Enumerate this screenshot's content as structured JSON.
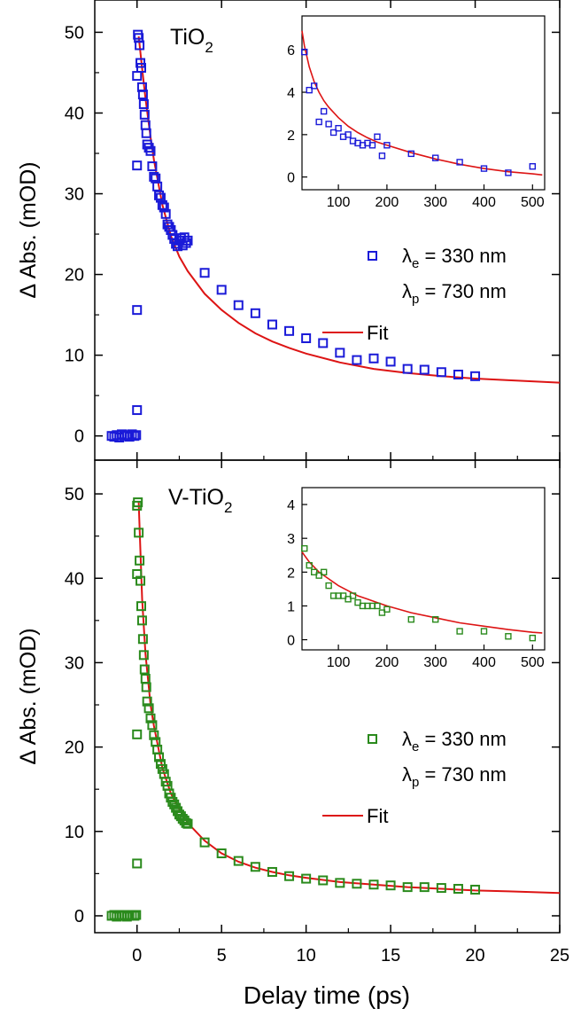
{
  "chart_data": [
    {
      "type": "scatter",
      "title": "TiO2",
      "title_main": "TiO",
      "title_sub": "2",
      "xlabel": "Delay time (ps)",
      "ylabel": "Δ Abs. (mOD)",
      "xlim": [
        -2.5,
        25
      ],
      "ylim": [
        -3,
        54
      ],
      "xticks": [
        "0",
        "5",
        "10",
        "15",
        "20",
        "25"
      ],
      "yticks": [
        "0",
        "10",
        "20",
        "30",
        "40",
        "50"
      ],
      "grid": false,
      "legend_position": "right",
      "legend": {
        "scatter_line": {
          "sym": "λ",
          "sub": "e",
          "text": " = 330 nm"
        },
        "probe_line": {
          "sym": "λ",
          "sub": "p",
          "text": " = 730 nm"
        },
        "fit_label": "Fit"
      },
      "colors": {
        "points": "#1a1ad8",
        "fit": "#dd1414"
      },
      "series": [
        {
          "kind": "markers",
          "x": [
            -1.5,
            -1.35,
            -1.2,
            -1.05,
            -0.9,
            -0.75,
            -0.6,
            -0.45,
            -0.3,
            -0.15,
            -0.05,
            0,
            0,
            0,
            0,
            0.05,
            0.1,
            0.15,
            0.2,
            0.25,
            0.3,
            0.35,
            0.4,
            0.45,
            0.5,
            0.55,
            0.6,
            0.7,
            0.8,
            0.9,
            1.0,
            1.1,
            1.2,
            1.3,
            1.4,
            1.5,
            1.6,
            1.7,
            1.8,
            1.9,
            2.0,
            2.1,
            2.2,
            2.3,
            2.4,
            2.5,
            2.6,
            2.7,
            2.8,
            2.9,
            3.0,
            4,
            5,
            6,
            7,
            8,
            9,
            10,
            11,
            12,
            13,
            14,
            15,
            16,
            17,
            18,
            19,
            20
          ],
          "y": [
            0,
            -0.1,
            0.1,
            -0.2,
            0.2,
            0,
            0.1,
            -0.1,
            0.2,
            0,
            0.1,
            3.2,
            15.6,
            33.5,
            44.6,
            49.7,
            49.3,
            48.4,
            46.2,
            45.6,
            43.2,
            42.3,
            41.1,
            39.8,
            38.5,
            37.5,
            36.1,
            35.7,
            35.3,
            33.4,
            32.1,
            31.9,
            30.9,
            29.8,
            29.5,
            28.6,
            28.3,
            27.5,
            26.2,
            25.9,
            25.5,
            24.9,
            24.4,
            23.8,
            23.5,
            24.2,
            24.5,
            23.6,
            24.6,
            23.9,
            24.2,
            20.2,
            18.1,
            16.2,
            15.2,
            13.8,
            13.0,
            12.1,
            11.5,
            10.3,
            9.4,
            9.6,
            9.2,
            8.3,
            8.2,
            7.9,
            7.6,
            7.4
          ]
        },
        {
          "kind": "fit",
          "x": [
            0.1,
            0.3,
            0.5,
            0.8,
            1.0,
            1.5,
            2.0,
            2.5,
            3.0,
            4,
            5,
            6,
            7,
            8,
            9,
            10,
            12,
            14,
            16,
            18,
            20,
            22,
            25
          ],
          "y": [
            49.5,
            45.5,
            41.8,
            37.0,
            34.2,
            28.6,
            24.8,
            22.2,
            20.4,
            17.6,
            15.6,
            14.0,
            12.7,
            11.7,
            10.9,
            10.2,
            9.1,
            8.3,
            7.8,
            7.4,
            7.1,
            6.9,
            6.6
          ]
        }
      ],
      "inset": {
        "xlim": [
          25,
          525
        ],
        "ylim": [
          -0.6,
          7.6
        ],
        "xticks": [
          "100",
          "200",
          "300",
          "400",
          "500"
        ],
        "yticks": [
          "0",
          "2",
          "4",
          "6"
        ],
        "x": [
          30,
          40,
          50,
          60,
          70,
          80,
          90,
          100,
          110,
          120,
          130,
          140,
          150,
          160,
          170,
          180,
          190,
          200,
          250,
          300,
          350,
          400,
          450,
          500
        ],
        "y": [
          5.9,
          4.1,
          4.3,
          2.6,
          3.1,
          2.5,
          2.1,
          2.3,
          1.9,
          2.0,
          1.7,
          1.6,
          1.5,
          1.6,
          1.5,
          1.9,
          1.0,
          1.5,
          1.1,
          0.9,
          0.7,
          0.4,
          0.2,
          0.5
        ],
        "fit_x": [
          25,
          30,
          40,
          50,
          60,
          70,
          80,
          100,
          120,
          140,
          160,
          180,
          200,
          250,
          300,
          350,
          400,
          450,
          500,
          520
        ],
        "fit_y": [
          6.9,
          6.2,
          5.2,
          4.5,
          4.0,
          3.6,
          3.3,
          2.8,
          2.4,
          2.1,
          1.85,
          1.65,
          1.5,
          1.15,
          0.85,
          0.6,
          0.4,
          0.25,
          0.15,
          0.1
        ]
      }
    },
    {
      "type": "scatter",
      "title": "V-TiO2",
      "title_main": "V-TiO",
      "title_sub": "2",
      "xlabel": "Delay time (ps)",
      "ylabel": "Δ Abs. (mOD)",
      "xlim": [
        -2.5,
        25
      ],
      "ylim": [
        -2,
        54
      ],
      "xticks": [
        "0",
        "5",
        "10",
        "15",
        "20",
        "25"
      ],
      "yticks": [
        "0",
        "10",
        "20",
        "30",
        "40",
        "50"
      ],
      "grid": false,
      "legend_position": "right",
      "legend": {
        "scatter_line": {
          "sym": "λ",
          "sub": "e",
          "text": " = 330 nm"
        },
        "probe_line": {
          "sym": "λ",
          "sub": "p",
          "text": " = 730 nm"
        },
        "fit_label": "Fit"
      },
      "colors": {
        "points": "#2a8a1c",
        "fit": "#dd1414"
      },
      "series": [
        {
          "kind": "markers",
          "x": [
            -1.5,
            -1.35,
            -1.2,
            -1.05,
            -0.9,
            -0.75,
            -0.6,
            -0.45,
            -0.3,
            -0.15,
            -0.05,
            0,
            0,
            0,
            0,
            0.05,
            0.1,
            0.15,
            0.2,
            0.25,
            0.3,
            0.35,
            0.4,
            0.45,
            0.5,
            0.55,
            0.6,
            0.7,
            0.8,
            0.9,
            1.0,
            1.1,
            1.2,
            1.3,
            1.4,
            1.5,
            1.6,
            1.7,
            1.8,
            1.9,
            2.0,
            2.1,
            2.2,
            2.3,
            2.4,
            2.5,
            2.6,
            2.7,
            2.8,
            2.9,
            3.0,
            4,
            5,
            6,
            7,
            8,
            9,
            10,
            11,
            12,
            13,
            14,
            15,
            16,
            17,
            18,
            19,
            20
          ],
          "y": [
            0,
            0.1,
            -0.1,
            0.1,
            0,
            0.1,
            -0.1,
            0,
            0.1,
            0,
            0.1,
            6.2,
            21.5,
            40.5,
            48.6,
            49.0,
            45.4,
            42.1,
            39.7,
            36.7,
            35.0,
            32.8,
            30.9,
            29.2,
            28.1,
            27.1,
            25.4,
            24.6,
            23.4,
            22.6,
            21.4,
            20.6,
            19.7,
            18.8,
            18.0,
            17.4,
            16.8,
            15.9,
            15.4,
            14.5,
            14.0,
            13.5,
            13.2,
            12.8,
            12.4,
            12.0,
            11.8,
            11.5,
            11.3,
            11.0,
            10.9,
            8.7,
            7.4,
            6.5,
            5.8,
            5.2,
            4.7,
            4.4,
            4.2,
            3.9,
            3.8,
            3.7,
            3.6,
            3.4,
            3.4,
            3.3,
            3.2,
            3.1
          ]
        },
        {
          "kind": "fit",
          "x": [
            0.1,
            0.3,
            0.5,
            0.8,
            1.0,
            1.5,
            2.0,
            2.5,
            3.0,
            4,
            5,
            6,
            7,
            8,
            9,
            10,
            12,
            14,
            16,
            18,
            20,
            22,
            25
          ],
          "y": [
            49.0,
            37.5,
            31.0,
            25.0,
            22.5,
            17.5,
            14.5,
            12.6,
            11.0,
            8.9,
            7.4,
            6.4,
            5.7,
            5.2,
            4.8,
            4.5,
            4.0,
            3.7,
            3.4,
            3.2,
            3.0,
            2.9,
            2.7
          ]
        }
      ],
      "inset": {
        "xlim": [
          25,
          525
        ],
        "ylim": [
          -0.3,
          4.5
        ],
        "xticks": [
          "100",
          "200",
          "300",
          "400",
          "500"
        ],
        "yticks": [
          "0",
          "1",
          "2",
          "3",
          "4"
        ],
        "x": [
          30,
          40,
          50,
          60,
          70,
          80,
          90,
          100,
          110,
          120,
          130,
          140,
          150,
          160,
          170,
          180,
          190,
          200,
          250,
          300,
          350,
          400,
          450,
          500
        ],
        "y": [
          2.7,
          2.2,
          2.0,
          1.9,
          2.0,
          1.6,
          1.3,
          1.3,
          1.3,
          1.2,
          1.3,
          1.1,
          1.0,
          1.0,
          1.0,
          1.0,
          0.8,
          0.9,
          0.6,
          0.6,
          0.25,
          0.25,
          0.1,
          0.05
        ],
        "fit_x": [
          25,
          30,
          40,
          50,
          60,
          70,
          80,
          100,
          120,
          140,
          160,
          180,
          200,
          250,
          300,
          350,
          400,
          450,
          500,
          520
        ],
        "fit_y": [
          2.6,
          2.5,
          2.3,
          2.15,
          2.0,
          1.9,
          1.8,
          1.6,
          1.45,
          1.3,
          1.2,
          1.1,
          1.0,
          0.8,
          0.65,
          0.5,
          0.4,
          0.3,
          0.22,
          0.2
        ]
      }
    }
  ]
}
